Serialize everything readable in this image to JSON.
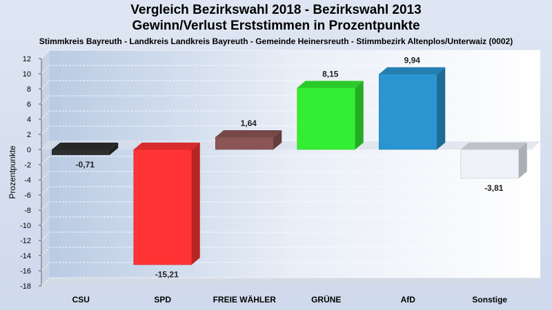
{
  "title": "Vergleich Bezirkswahl 2018 - Bezirkswahl 2013",
  "subtitle": "Gewinn/Verlust Erststimmen in Prozentpunkte",
  "description": "Stimmkreis Bayreuth - Landkreis Landkreis Bayreuth - Gemeinde Heinersreuth - Stimmbezirk Altenplos/Unterwaiz (0002)",
  "chart_data": {
    "type": "bar",
    "title": "Vergleich Bezirkswahl 2018 - Bezirkswahl 2013",
    "subtitle": "Gewinn/Verlust Erststimmen in Prozentpunkte",
    "ylabel": "Prozentpunkte",
    "xlabel": "",
    "ylim": [
      -18,
      12
    ],
    "yticks": [
      12,
      10,
      8,
      6,
      4,
      2,
      0,
      -2,
      -4,
      -6,
      -8,
      -10,
      -12,
      -14,
      -16,
      -18
    ],
    "grid": true,
    "legend": "none",
    "categories": [
      "CSU",
      "SPD",
      "FREIE WÄHLER",
      "GRÜNE",
      "AfD",
      "Sonstige"
    ],
    "values": [
      -0.71,
      -15.21,
      1.64,
      8.15,
      9.94,
      -3.81
    ],
    "value_labels": [
      "-0,71",
      "-15,21",
      "1,64",
      "8,15",
      "9,94",
      "-3,81"
    ],
    "colors": [
      "#2e2e2e",
      "#ff3333",
      "#8b5555",
      "#33ee33",
      "#2a95d0",
      "#eef2f8"
    ]
  }
}
